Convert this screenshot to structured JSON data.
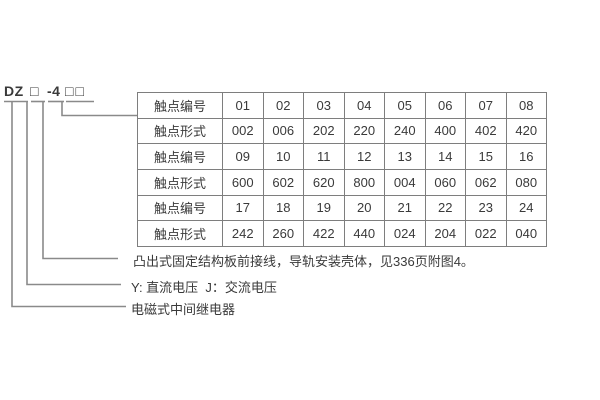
{
  "model": {
    "prefix": "DZ",
    "box1": "□",
    "series": "-4",
    "box2": "□□",
    "full": "DZ□-4□□"
  },
  "table": {
    "rows": [
      {
        "label": "触点编号",
        "values": [
          "01",
          "02",
          "03",
          "04",
          "05",
          "06",
          "07",
          "08"
        ]
      },
      {
        "label": "触点形式",
        "values": [
          "002",
          "006",
          "202",
          "220",
          "240",
          "400",
          "402",
          "420"
        ]
      },
      {
        "label": "触点编号",
        "values": [
          "09",
          "10",
          "11",
          "12",
          "13",
          "14",
          "15",
          "16"
        ]
      },
      {
        "label": "触点形式",
        "values": [
          "600",
          "602",
          "620",
          "800",
          "004",
          "060",
          "062",
          "080"
        ]
      },
      {
        "label": "触点编号",
        "values": [
          "17",
          "18",
          "19",
          "20",
          "21",
          "22",
          "23",
          "24"
        ]
      },
      {
        "label": "触点形式",
        "values": [
          "242",
          "260",
          "422",
          "440",
          "024",
          "204",
          "022",
          "040"
        ]
      }
    ]
  },
  "annotations": {
    "mounting": "凸出式固定结构板前接线，导轨安装壳体，见336页附图4。",
    "voltage": "Y: 直流电压  J：交流电压",
    "relay_type": "电磁式中间继电器"
  },
  "colors": {
    "line": "#8a8a8a",
    "text": "#3a3a3a",
    "table_border": "#7e7e7e",
    "background": "#ffffff"
  }
}
